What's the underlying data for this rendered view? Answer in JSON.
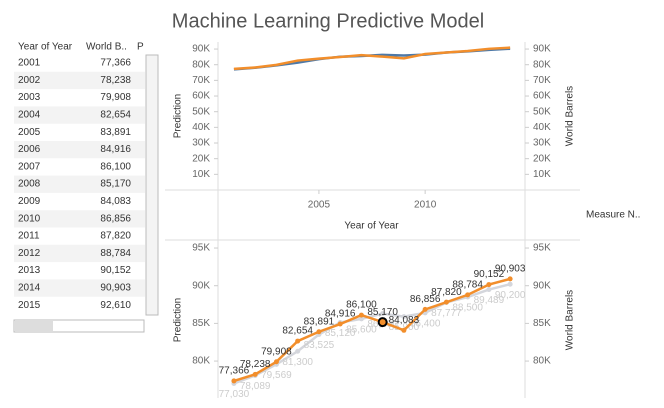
{
  "title": "Machine Learning Predictive Model",
  "table": {
    "headers": [
      "Year of Year",
      "World B..",
      "P"
    ],
    "rows": [
      [
        "2001",
        "77,366"
      ],
      [
        "2002",
        "78,238"
      ],
      [
        "2003",
        "79,908"
      ],
      [
        "2004",
        "82,654"
      ],
      [
        "2005",
        "83,891"
      ],
      [
        "2006",
        "84,916"
      ],
      [
        "2007",
        "86,100"
      ],
      [
        "2008",
        "85,170"
      ],
      [
        "2009",
        "84,083"
      ],
      [
        "2010",
        "86,856"
      ],
      [
        "2011",
        "87,820"
      ],
      [
        "2012",
        "88,784"
      ],
      [
        "2013",
        "90,152"
      ],
      [
        "2014",
        "90,903"
      ],
      [
        "2015",
        "92,610"
      ]
    ]
  },
  "legend_title": "Measure N..",
  "chart_data": [
    {
      "type": "line",
      "x": [
        2001,
        2002,
        2003,
        2004,
        2005,
        2006,
        2007,
        2008,
        2009,
        2010,
        2011,
        2012,
        2013,
        2014
      ],
      "xlim": [
        2000.25,
        2014.7
      ],
      "xticks": [
        2005,
        2010
      ],
      "xlabel": "Year of Year",
      "ylabel": "Prediction",
      "y2label": "World Barrels",
      "ylim": [
        0,
        94500
      ],
      "yticks": [
        {
          "value": 10000,
          "label": "10K"
        },
        {
          "value": 20000,
          "label": "20K"
        },
        {
          "value": 30000,
          "label": "30K"
        },
        {
          "value": 40000,
          "label": "40K"
        },
        {
          "value": 50000,
          "label": "50K"
        },
        {
          "value": 60000,
          "label": "60K"
        },
        {
          "value": 70000,
          "label": "70K"
        },
        {
          "value": 80000,
          "label": "80K"
        },
        {
          "value": 90000,
          "label": "90K"
        }
      ],
      "y2lim": [
        0,
        94500
      ],
      "y2ticks": [
        {
          "value": 10000,
          "label": "10K"
        },
        {
          "value": 20000,
          "label": "20K"
        },
        {
          "value": 30000,
          "label": "30K"
        },
        {
          "value": 40000,
          "label": "40K"
        },
        {
          "value": 50000,
          "label": "50K"
        },
        {
          "value": 60000,
          "label": "60K"
        },
        {
          "value": 70000,
          "label": "70K"
        },
        {
          "value": 80000,
          "label": "80K"
        },
        {
          "value": 90000,
          "label": "90K"
        }
      ],
      "series": [
        {
          "name": "Prediction",
          "color": "#4e79a7",
          "values": [
            77030,
            78089,
            79569,
            81300,
            83525,
            85120,
            85600,
            86300,
            85900,
            86400,
            87777,
            88500,
            89489,
            90200
          ]
        },
        {
          "name": "World Barrels",
          "color": "#f28e2b",
          "axis": "y2",
          "values": [
            77366,
            78238,
            79908,
            82654,
            83891,
            84916,
            86100,
            85170,
            84083,
            86856,
            87820,
            88784,
            90152,
            90903
          ]
        }
      ]
    },
    {
      "type": "line",
      "x": [
        2001,
        2002,
        2003,
        2004,
        2005,
        2006,
        2007,
        2008,
        2009,
        2010,
        2011,
        2012,
        2013,
        2014
      ],
      "xlim": [
        2000.25,
        2014.7
      ],
      "ylabel": "Prediction",
      "y2label": "World Barrels",
      "ylim": [
        75100,
        95800
      ],
      "yticks": [
        {
          "value": 80000,
          "label": "80K"
        },
        {
          "value": 85000,
          "label": "85K"
        },
        {
          "value": 90000,
          "label": "90K"
        },
        {
          "value": 95000,
          "label": "95K"
        }
      ],
      "y2lim": [
        75100,
        95800
      ],
      "y2ticks": [
        {
          "value": 80000,
          "label": "80K"
        },
        {
          "value": 85000,
          "label": "85K"
        },
        {
          "value": 90000,
          "label": "90K"
        },
        {
          "value": 95000,
          "label": "95K"
        }
      ],
      "highlight": {
        "series": 1,
        "index": 7
      },
      "series": [
        {
          "name": "Prediction",
          "color": "#d4d6dc",
          "values": [
            77030,
            78089,
            79569,
            81300,
            83525,
            85120,
            85600,
            86300,
            85900,
            86400,
            87777,
            88500,
            89489,
            90200
          ],
          "value_labels": [
            "77,030",
            "78,089",
            "79,569",
            "81,300",
            "83,525",
            "85,120",
            "85,600",
            "86,300",
            "85,900",
            "86,400",
            "87,777",
            "88,500",
            "89,489",
            "90,200"
          ]
        },
        {
          "name": "World Barrels",
          "color": "#f28e2b",
          "axis": "y2",
          "values": [
            77366,
            78238,
            79908,
            82654,
            83891,
            84916,
            86100,
            85170,
            84083,
            86856,
            87820,
            88784,
            90152,
            90903
          ],
          "value_labels": [
            "77,366",
            "78,238",
            "79,908",
            "82,654",
            "83,891",
            "84,916",
            "86,100",
            "85,170",
            "84,083",
            "86,856",
            "87,820",
            "88,784",
            "90,152",
            "90,903"
          ]
        }
      ]
    }
  ]
}
